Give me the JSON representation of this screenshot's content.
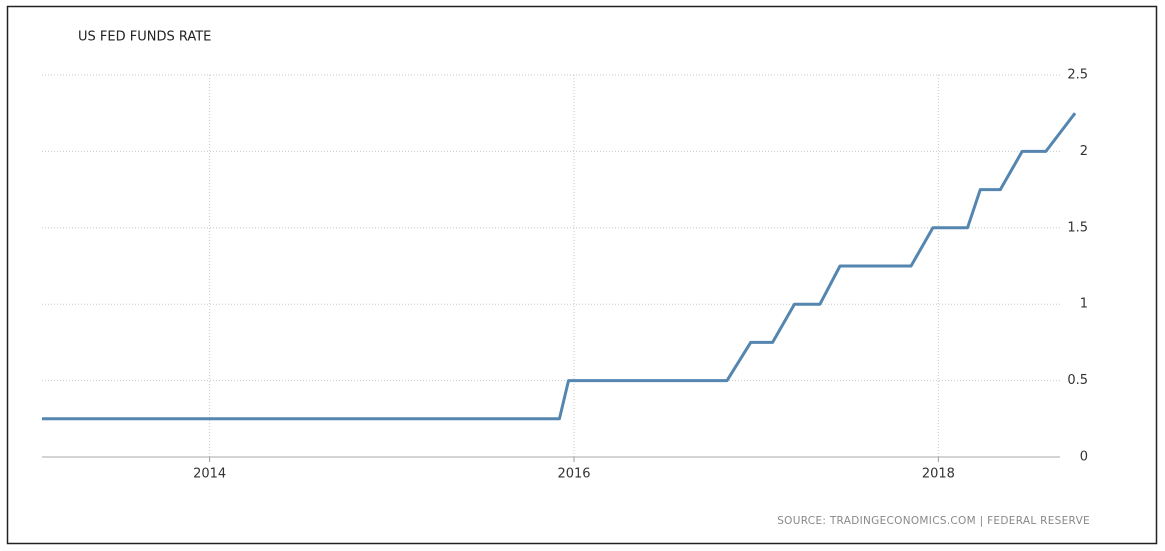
{
  "chart_data": {
    "type": "line",
    "title": "US FED FUNDS RATE",
    "source": "SOURCE: TRADINGECONOMICS.COM | FEDERAL RESERVE",
    "x": [
      2013.08,
      2015.92,
      2015.97,
      2016.84,
      2016.97,
      2017.09,
      2017.21,
      2017.35,
      2017.46,
      2017.85,
      2017.97,
      2018.16,
      2018.23,
      2018.34,
      2018.46,
      2018.59,
      2018.75
    ],
    "series": [
      {
        "name": "US Fed Funds Rate",
        "color": "#5486b0",
        "values": [
          0.25,
          0.25,
          0.5,
          0.5,
          0.75,
          0.75,
          1,
          1,
          1.25,
          1.25,
          1.5,
          1.5,
          1.75,
          1.75,
          2,
          2,
          2.25
        ]
      }
    ],
    "xlim": [
      2013.08,
      2018.75
    ],
    "xticks": [
      2014,
      2016,
      2018
    ],
    "ylim": [
      0,
      2.5
    ],
    "yticks": [
      0,
      0.5,
      1,
      1.5,
      2,
      2.5
    ],
    "grid": true
  }
}
